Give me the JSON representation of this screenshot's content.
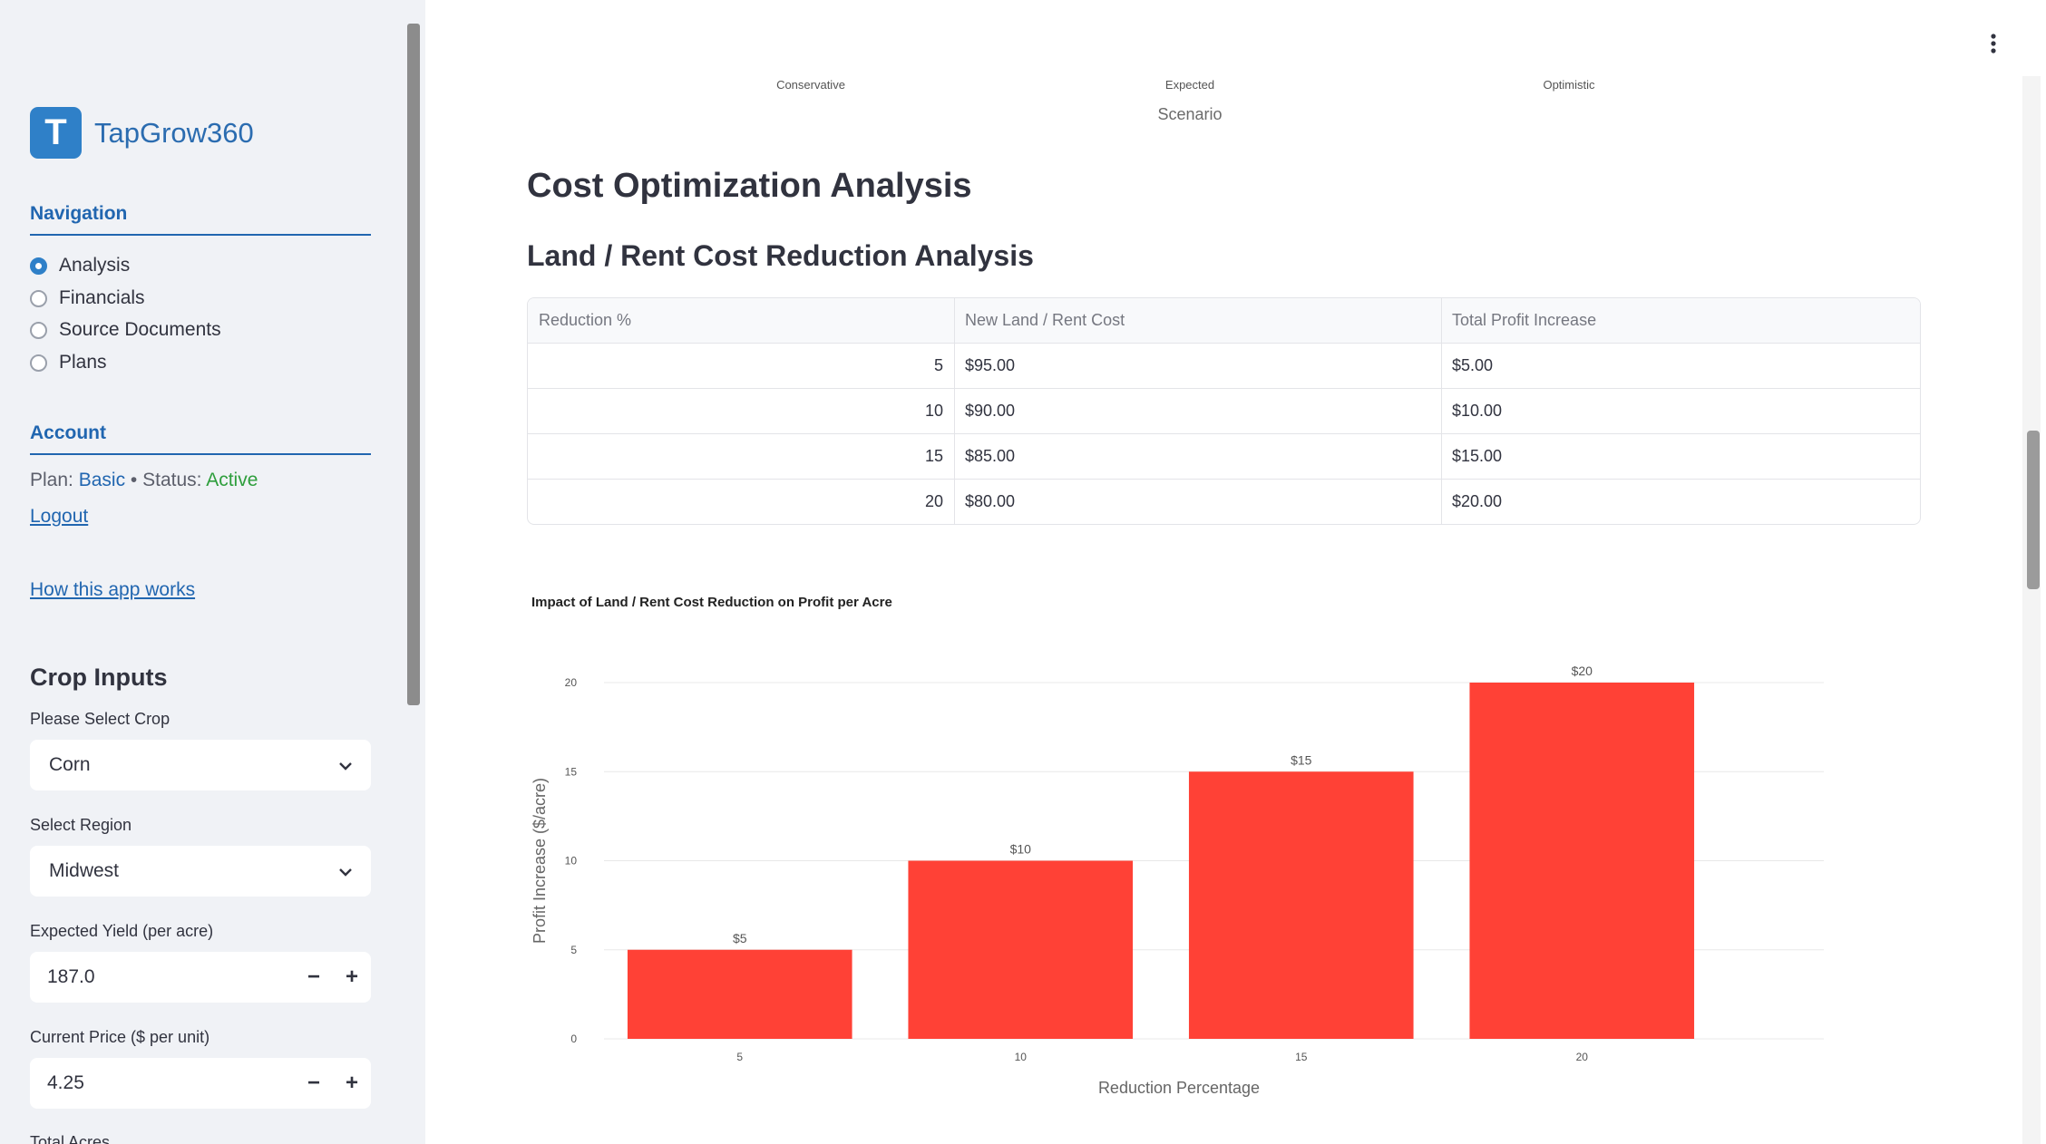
{
  "app": {
    "name": "TapGrow360",
    "logo_letter": "T",
    "brand_color": "#2f80c8"
  },
  "sidebar": {
    "navigation_title": "Navigation",
    "nav_items": [
      {
        "label": "Analysis",
        "selected": true
      },
      {
        "label": "Financials",
        "selected": false
      },
      {
        "label": "Source Documents",
        "selected": false
      },
      {
        "label": "Plans",
        "selected": false
      }
    ],
    "account_title": "Account",
    "plan_label": "Plan:",
    "plan_value": "Basic",
    "status_label": "Status:",
    "status_value": "Active",
    "separator": "•",
    "logout_label": "Logout",
    "help_link": "How this app works",
    "crop_inputs_title": "Crop Inputs",
    "crop_label": "Please Select Crop",
    "crop_value": "Corn",
    "region_label": "Select Region",
    "region_value": "Midwest",
    "yield_label": "Expected Yield (per acre)",
    "yield_value": "187.0",
    "price_label": "Current Price ($ per unit)",
    "price_value": "4.25",
    "acres_label": "Total Acres",
    "minus": "−",
    "plus": "+"
  },
  "scenario_axis": {
    "ticks": [
      "Conservative",
      "Expected",
      "Optimistic"
    ],
    "title": "Scenario"
  },
  "main": {
    "heading": "Cost Optimization Analysis",
    "subheading": "Land / Rent Cost Reduction Analysis",
    "table": {
      "columns": [
        "Reduction %",
        "New Land / Rent Cost",
        "Total Profit Increase"
      ],
      "rows": [
        [
          "5",
          "$95.00",
          "$5.00"
        ],
        [
          "10",
          "$90.00",
          "$10.00"
        ],
        [
          "15",
          "$85.00",
          "$15.00"
        ],
        [
          "20",
          "$80.00",
          "$20.00"
        ]
      ]
    }
  },
  "chart_data": {
    "type": "bar",
    "title": "Impact of Land / Rent Cost Reduction on Profit per Acre",
    "xlabel": "Reduction Percentage",
    "ylabel": "Profit Increase ($/acre)",
    "categories": [
      "5",
      "10",
      "15",
      "20"
    ],
    "values": [
      5,
      10,
      15,
      20
    ],
    "data_labels": [
      "$5",
      "$10",
      "$15",
      "$20"
    ],
    "yticks": [
      0,
      5,
      10,
      15,
      20
    ],
    "ylim": [
      0,
      20
    ],
    "bar_color": "#ff4136",
    "grid": true
  }
}
